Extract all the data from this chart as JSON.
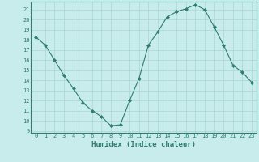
{
  "x": [
    0,
    1,
    2,
    3,
    4,
    5,
    6,
    7,
    8,
    9,
    10,
    11,
    12,
    13,
    14,
    15,
    16,
    17,
    18,
    19,
    20,
    21,
    22,
    23
  ],
  "y": [
    18.3,
    17.5,
    16.0,
    14.5,
    13.2,
    11.8,
    11.0,
    10.4,
    9.5,
    9.6,
    12.0,
    14.2,
    17.5,
    18.8,
    20.3,
    20.8,
    21.1,
    21.5,
    21.0,
    19.3,
    17.5,
    15.5,
    14.8,
    13.8
  ],
  "line_color": "#2e7d6e",
  "marker": "D",
  "marker_size": 2.0,
  "bg_color": "#c8ecec",
  "grid_color": "#aad4d4",
  "xlabel": "Humidex (Indice chaleur)",
  "xlim": [
    -0.5,
    23.5
  ],
  "ylim": [
    8.8,
    21.8
  ],
  "yticks": [
    9,
    10,
    11,
    12,
    13,
    14,
    15,
    16,
    17,
    18,
    19,
    20,
    21
  ],
  "xticks": [
    0,
    1,
    2,
    3,
    4,
    5,
    6,
    7,
    8,
    9,
    10,
    11,
    12,
    13,
    14,
    15,
    16,
    17,
    18,
    19,
    20,
    21,
    22,
    23
  ],
  "tick_color": "#2e7d6e",
  "label_color": "#2e7d6e",
  "spine_color": "#2e7d6e",
  "xlabel_fontsize": 6.5,
  "tick_fontsize": 5.0
}
